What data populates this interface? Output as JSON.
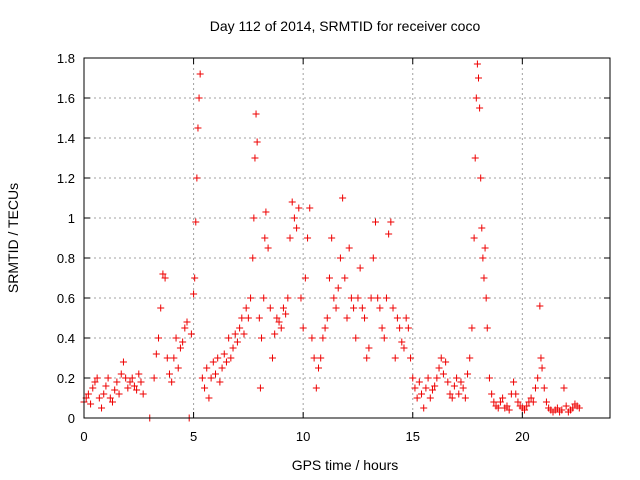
{
  "chart_data": {
    "type": "scatter",
    "title": "Day 112 of 2014, SRMTID for receiver coco",
    "xlabel": "GPS time / hours",
    "ylabel": "SRMTID / TECUs",
    "xlim": [
      0,
      24
    ],
    "ylim": [
      0,
      1.8
    ],
    "xticks": [
      0,
      5,
      10,
      15,
      20
    ],
    "xtick_labels": [
      "0",
      "5",
      "10",
      "15",
      "20"
    ],
    "yticks": [
      0,
      0.2,
      0.4,
      0.6,
      0.8,
      1,
      1.2,
      1.4,
      1.6,
      1.8
    ],
    "ytick_labels": [
      "0",
      "0.2",
      "0.4",
      "0.6",
      "0.8",
      "1",
      "1.2",
      "1.4",
      "1.6",
      "1.8"
    ],
    "grid": true,
    "series": [
      {
        "name": "SRMTID",
        "color": "#ee0000",
        "marker": "plus",
        "points": [
          [
            0.0,
            0.08
          ],
          [
            0.1,
            0.1
          ],
          [
            0.2,
            0.12
          ],
          [
            0.3,
            0.07
          ],
          [
            0.4,
            0.15
          ],
          [
            0.5,
            0.18
          ],
          [
            0.6,
            0.2
          ],
          [
            0.7,
            0.1
          ],
          [
            0.8,
            0.05
          ],
          [
            0.9,
            0.12
          ],
          [
            1.0,
            0.16
          ],
          [
            1.1,
            0.2
          ],
          [
            1.2,
            0.1
          ],
          [
            1.3,
            0.08
          ],
          [
            1.4,
            0.14
          ],
          [
            1.5,
            0.18
          ],
          [
            1.6,
            0.12
          ],
          [
            1.7,
            0.22
          ],
          [
            1.8,
            0.28
          ],
          [
            1.9,
            0.2
          ],
          [
            2.0,
            0.15
          ],
          [
            2.1,
            0.18
          ],
          [
            2.2,
            0.2
          ],
          [
            2.3,
            0.16
          ],
          [
            2.4,
            0.14
          ],
          [
            2.5,
            0.22
          ],
          [
            2.6,
            0.18
          ],
          [
            2.7,
            0.12
          ],
          [
            3.0,
            0.0
          ],
          [
            3.2,
            0.2
          ],
          [
            3.3,
            0.32
          ],
          [
            3.4,
            0.4
          ],
          [
            3.5,
            0.55
          ],
          [
            3.6,
            0.72
          ],
          [
            3.7,
            0.7
          ],
          [
            3.8,
            0.3
          ],
          [
            3.9,
            0.22
          ],
          [
            4.0,
            0.18
          ],
          [
            4.1,
            0.3
          ],
          [
            4.2,
            0.4
          ],
          [
            4.3,
            0.25
          ],
          [
            4.4,
            0.35
          ],
          [
            4.5,
            0.38
          ],
          [
            4.6,
            0.45
          ],
          [
            4.7,
            0.48
          ],
          [
            4.8,
            0.0
          ],
          [
            4.9,
            0.42
          ],
          [
            5.0,
            0.62
          ],
          [
            5.05,
            0.7
          ],
          [
            5.1,
            0.98
          ],
          [
            5.15,
            1.2
          ],
          [
            5.2,
            1.45
          ],
          [
            5.25,
            1.6
          ],
          [
            5.3,
            1.72
          ],
          [
            5.4,
            0.2
          ],
          [
            5.5,
            0.15
          ],
          [
            5.6,
            0.25
          ],
          [
            5.7,
            0.1
          ],
          [
            5.8,
            0.2
          ],
          [
            5.9,
            0.28
          ],
          [
            6.0,
            0.22
          ],
          [
            6.1,
            0.3
          ],
          [
            6.2,
            0.18
          ],
          [
            6.3,
            0.25
          ],
          [
            6.4,
            0.32
          ],
          [
            6.5,
            0.28
          ],
          [
            6.6,
            0.4
          ],
          [
            6.7,
            0.3
          ],
          [
            6.8,
            0.35
          ],
          [
            6.9,
            0.42
          ],
          [
            7.0,
            0.38
          ],
          [
            7.1,
            0.45
          ],
          [
            7.2,
            0.5
          ],
          [
            7.3,
            0.42
          ],
          [
            7.4,
            0.55
          ],
          [
            7.5,
            0.5
          ],
          [
            7.6,
            0.6
          ],
          [
            7.7,
            0.8
          ],
          [
            7.75,
            1.0
          ],
          [
            7.8,
            1.3
          ],
          [
            7.85,
            1.52
          ],
          [
            7.9,
            1.38
          ],
          [
            8.0,
            0.5
          ],
          [
            8.05,
            0.15
          ],
          [
            8.1,
            0.4
          ],
          [
            8.2,
            0.6
          ],
          [
            8.25,
            0.9
          ],
          [
            8.3,
            1.03
          ],
          [
            8.4,
            0.85
          ],
          [
            8.5,
            0.55
          ],
          [
            8.6,
            0.3
          ],
          [
            8.7,
            0.42
          ],
          [
            8.8,
            0.5
          ],
          [
            8.9,
            0.48
          ],
          [
            9.0,
            0.45
          ],
          [
            9.1,
            0.55
          ],
          [
            9.2,
            0.52
          ],
          [
            9.3,
            0.6
          ],
          [
            9.4,
            0.9
          ],
          [
            9.5,
            1.08
          ],
          [
            9.6,
            1.0
          ],
          [
            9.7,
            0.95
          ],
          [
            9.8,
            1.05
          ],
          [
            9.9,
            0.6
          ],
          [
            10.0,
            0.45
          ],
          [
            10.1,
            0.7
          ],
          [
            10.2,
            0.9
          ],
          [
            10.3,
            1.05
          ],
          [
            10.4,
            0.4
          ],
          [
            10.5,
            0.3
          ],
          [
            10.6,
            0.15
          ],
          [
            10.7,
            0.25
          ],
          [
            10.8,
            0.3
          ],
          [
            10.9,
            0.4
          ],
          [
            11.0,
            0.45
          ],
          [
            11.1,
            0.5
          ],
          [
            11.2,
            0.7
          ],
          [
            11.3,
            0.9
          ],
          [
            11.4,
            0.6
          ],
          [
            11.5,
            0.55
          ],
          [
            11.6,
            0.65
          ],
          [
            11.7,
            0.8
          ],
          [
            11.8,
            1.1
          ],
          [
            11.9,
            0.7
          ],
          [
            12.0,
            0.5
          ],
          [
            12.1,
            0.85
          ],
          [
            12.2,
            0.6
          ],
          [
            12.3,
            0.55
          ],
          [
            12.4,
            0.4
          ],
          [
            12.5,
            0.6
          ],
          [
            12.6,
            0.75
          ],
          [
            12.7,
            0.55
          ],
          [
            12.8,
            0.5
          ],
          [
            12.9,
            0.3
          ],
          [
            13.0,
            0.35
          ],
          [
            13.1,
            0.6
          ],
          [
            13.2,
            0.8
          ],
          [
            13.3,
            0.98
          ],
          [
            13.4,
            0.6
          ],
          [
            13.5,
            0.55
          ],
          [
            13.6,
            0.45
          ],
          [
            13.7,
            0.4
          ],
          [
            13.8,
            0.6
          ],
          [
            13.9,
            0.92
          ],
          [
            14.0,
            0.98
          ],
          [
            14.1,
            0.55
          ],
          [
            14.2,
            0.3
          ],
          [
            14.3,
            0.5
          ],
          [
            14.4,
            0.45
          ],
          [
            14.5,
            0.38
          ],
          [
            14.6,
            0.35
          ],
          [
            14.7,
            0.5
          ],
          [
            14.8,
            0.45
          ],
          [
            14.9,
            0.3
          ],
          [
            15.0,
            0.2
          ],
          [
            15.1,
            0.15
          ],
          [
            15.2,
            0.1
          ],
          [
            15.3,
            0.18
          ],
          [
            15.4,
            0.12
          ],
          [
            15.5,
            0.05
          ],
          [
            15.6,
            0.15
          ],
          [
            15.7,
            0.2
          ],
          [
            15.8,
            0.1
          ],
          [
            15.9,
            0.14
          ],
          [
            16.0,
            0.16
          ],
          [
            16.1,
            0.2
          ],
          [
            16.2,
            0.25
          ],
          [
            16.3,
            0.3
          ],
          [
            16.4,
            0.22
          ],
          [
            16.5,
            0.28
          ],
          [
            16.6,
            0.18
          ],
          [
            16.7,
            0.12
          ],
          [
            16.8,
            0.1
          ],
          [
            16.9,
            0.16
          ],
          [
            17.0,
            0.2
          ],
          [
            17.1,
            0.12
          ],
          [
            17.2,
            0.18
          ],
          [
            17.3,
            0.15
          ],
          [
            17.4,
            0.1
          ],
          [
            17.5,
            0.22
          ],
          [
            17.6,
            0.3
          ],
          [
            17.7,
            0.45
          ],
          [
            17.8,
            0.9
          ],
          [
            17.85,
            1.3
          ],
          [
            17.9,
            1.6
          ],
          [
            17.95,
            1.77
          ],
          [
            18.0,
            1.7
          ],
          [
            18.05,
            1.55
          ],
          [
            18.1,
            1.2
          ],
          [
            18.15,
            0.95
          ],
          [
            18.2,
            0.8
          ],
          [
            18.25,
            0.7
          ],
          [
            18.3,
            0.85
          ],
          [
            18.35,
            0.6
          ],
          [
            18.4,
            0.45
          ],
          [
            18.5,
            0.2
          ],
          [
            18.6,
            0.12
          ],
          [
            18.7,
            0.08
          ],
          [
            18.8,
            0.06
          ],
          [
            18.9,
            0.05
          ],
          [
            19.0,
            0.08
          ],
          [
            19.1,
            0.1
          ],
          [
            19.2,
            0.05
          ],
          [
            19.3,
            0.06
          ],
          [
            19.4,
            0.04
          ],
          [
            19.5,
            0.12
          ],
          [
            19.6,
            0.18
          ],
          [
            19.7,
            0.12
          ],
          [
            19.8,
            0.08
          ],
          [
            19.9,
            0.06
          ],
          [
            20.0,
            0.05
          ],
          [
            20.1,
            0.04
          ],
          [
            20.2,
            0.06
          ],
          [
            20.3,
            0.08
          ],
          [
            20.4,
            0.1
          ],
          [
            20.5,
            0.08
          ],
          [
            20.6,
            0.15
          ],
          [
            20.7,
            0.2
          ],
          [
            20.8,
            0.56
          ],
          [
            20.85,
            0.3
          ],
          [
            20.9,
            0.25
          ],
          [
            21.0,
            0.15
          ],
          [
            21.1,
            0.08
          ],
          [
            21.2,
            0.05
          ],
          [
            21.3,
            0.04
          ],
          [
            21.4,
            0.03
          ],
          [
            21.5,
            0.04
          ],
          [
            21.6,
            0.05
          ],
          [
            21.7,
            0.03
          ],
          [
            21.8,
            0.04
          ],
          [
            21.9,
            0.15
          ],
          [
            22.0,
            0.06
          ],
          [
            22.1,
            0.03
          ],
          [
            22.2,
            0.04
          ],
          [
            22.3,
            0.05
          ],
          [
            22.4,
            0.07
          ],
          [
            22.5,
            0.06
          ],
          [
            22.6,
            0.05
          ]
        ]
      }
    ]
  }
}
